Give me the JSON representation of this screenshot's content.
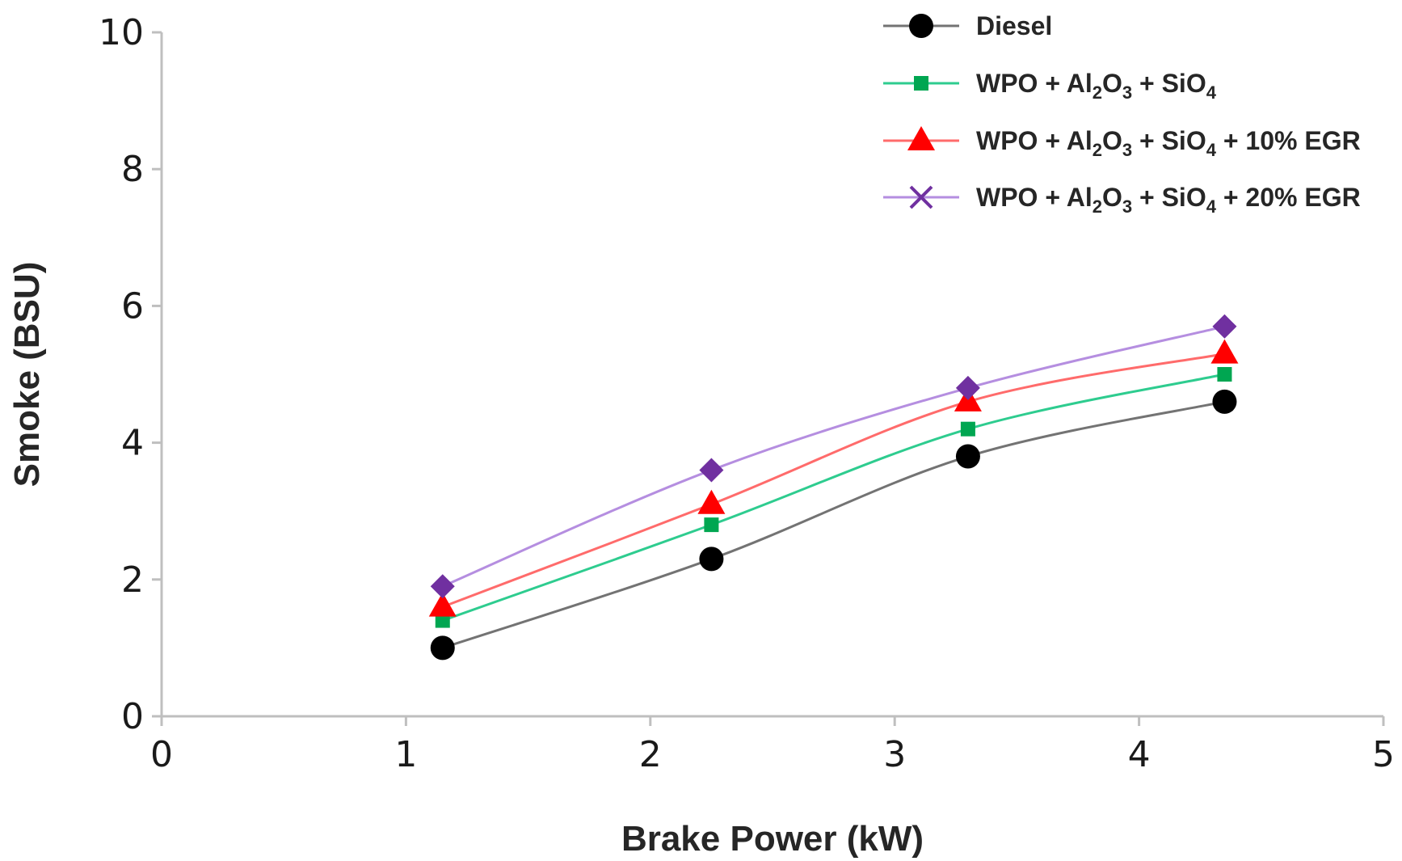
{
  "chart_data": {
    "type": "line",
    "title": "",
    "xlabel": "Brake Power (kW)",
    "ylabel": "Smoke (BSU)",
    "xlim": [
      0,
      5
    ],
    "ylim": [
      0,
      10
    ],
    "xticks": [
      "0",
      "1",
      "2",
      "3",
      "4",
      "5"
    ],
    "yticks": [
      "0",
      "2",
      "4",
      "6",
      "8",
      "10"
    ],
    "grid": false,
    "legend_position": "top-right",
    "x": [
      1.15,
      2.25,
      3.3,
      4.35
    ],
    "series": [
      {
        "name": "Diesel",
        "legend_parts": [
          {
            "t": "Diesel"
          }
        ],
        "values": [
          1.0,
          2.3,
          3.8,
          4.6
        ],
        "line_color": "#737373",
        "marker_color": "#000000",
        "marker": "circle"
      },
      {
        "name": "WPO + Al2O3 + SiO4",
        "legend_parts": [
          {
            "t": "WPO + Al"
          },
          {
            "t": "2",
            "sub": true
          },
          {
            "t": "O"
          },
          {
            "t": "3",
            "sub": true
          },
          {
            "t": " + SiO"
          },
          {
            "t": "4",
            "sub": true
          }
        ],
        "values": [
          1.4,
          2.8,
          4.2,
          5.0
        ],
        "line_color": "#2ecc8f",
        "marker_color": "#00a651",
        "marker": "square"
      },
      {
        "name": "WPO + Al2O3 + SiO4 + 10% EGR",
        "legend_parts": [
          {
            "t": "WPO + Al"
          },
          {
            "t": "2",
            "sub": true
          },
          {
            "t": "O"
          },
          {
            "t": "3",
            "sub": true
          },
          {
            "t": " + SiO"
          },
          {
            "t": "4",
            "sub": true
          },
          {
            "t": " + 10% EGR"
          }
        ],
        "values": [
          1.6,
          3.1,
          4.6,
          5.3
        ],
        "line_color": "#ff6b6b",
        "marker_color": "#ff0000",
        "marker": "triangle"
      },
      {
        "name": "WPO + Al2O3 + SiO4 + 20% EGR",
        "legend_parts": [
          {
            "t": "WPO + Al"
          },
          {
            "t": "2",
            "sub": true
          },
          {
            "t": "O"
          },
          {
            "t": "3",
            "sub": true
          },
          {
            "t": " + SiO"
          },
          {
            "t": "4",
            "sub": true
          },
          {
            "t": " + 20% EGR"
          }
        ],
        "values": [
          1.9,
          3.6,
          4.8,
          5.7
        ],
        "line_color": "#b58ee0",
        "marker_color": "#7030a0",
        "marker": "diamond",
        "legend_marker": "x"
      }
    ]
  }
}
